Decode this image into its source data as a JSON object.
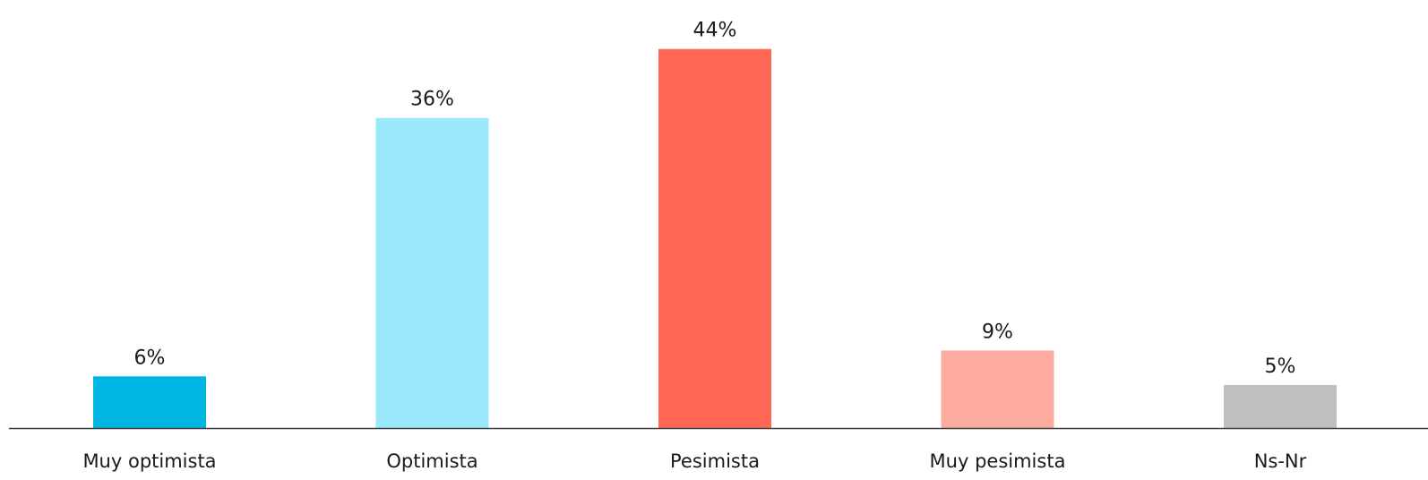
{
  "chart_data": {
    "type": "bar",
    "categories": [
      "Muy optimista",
      "Optimista",
      "Pesimista",
      "Muy pesimista",
      "Ns-Nr"
    ],
    "values": [
      6,
      36,
      44,
      9,
      5
    ],
    "data_labels": [
      "6%",
      "36%",
      "44%",
      "9%",
      "5%"
    ],
    "colors": [
      "#00b5e2",
      "#9de9fc",
      "#ff6855",
      "#feaba0",
      "#bfbfbf"
    ],
    "axis_color": "#404040",
    "title": "",
    "xlabel": "",
    "ylabel": "",
    "ylim": [
      0,
      50
    ],
    "grid": false,
    "legend": "none"
  }
}
